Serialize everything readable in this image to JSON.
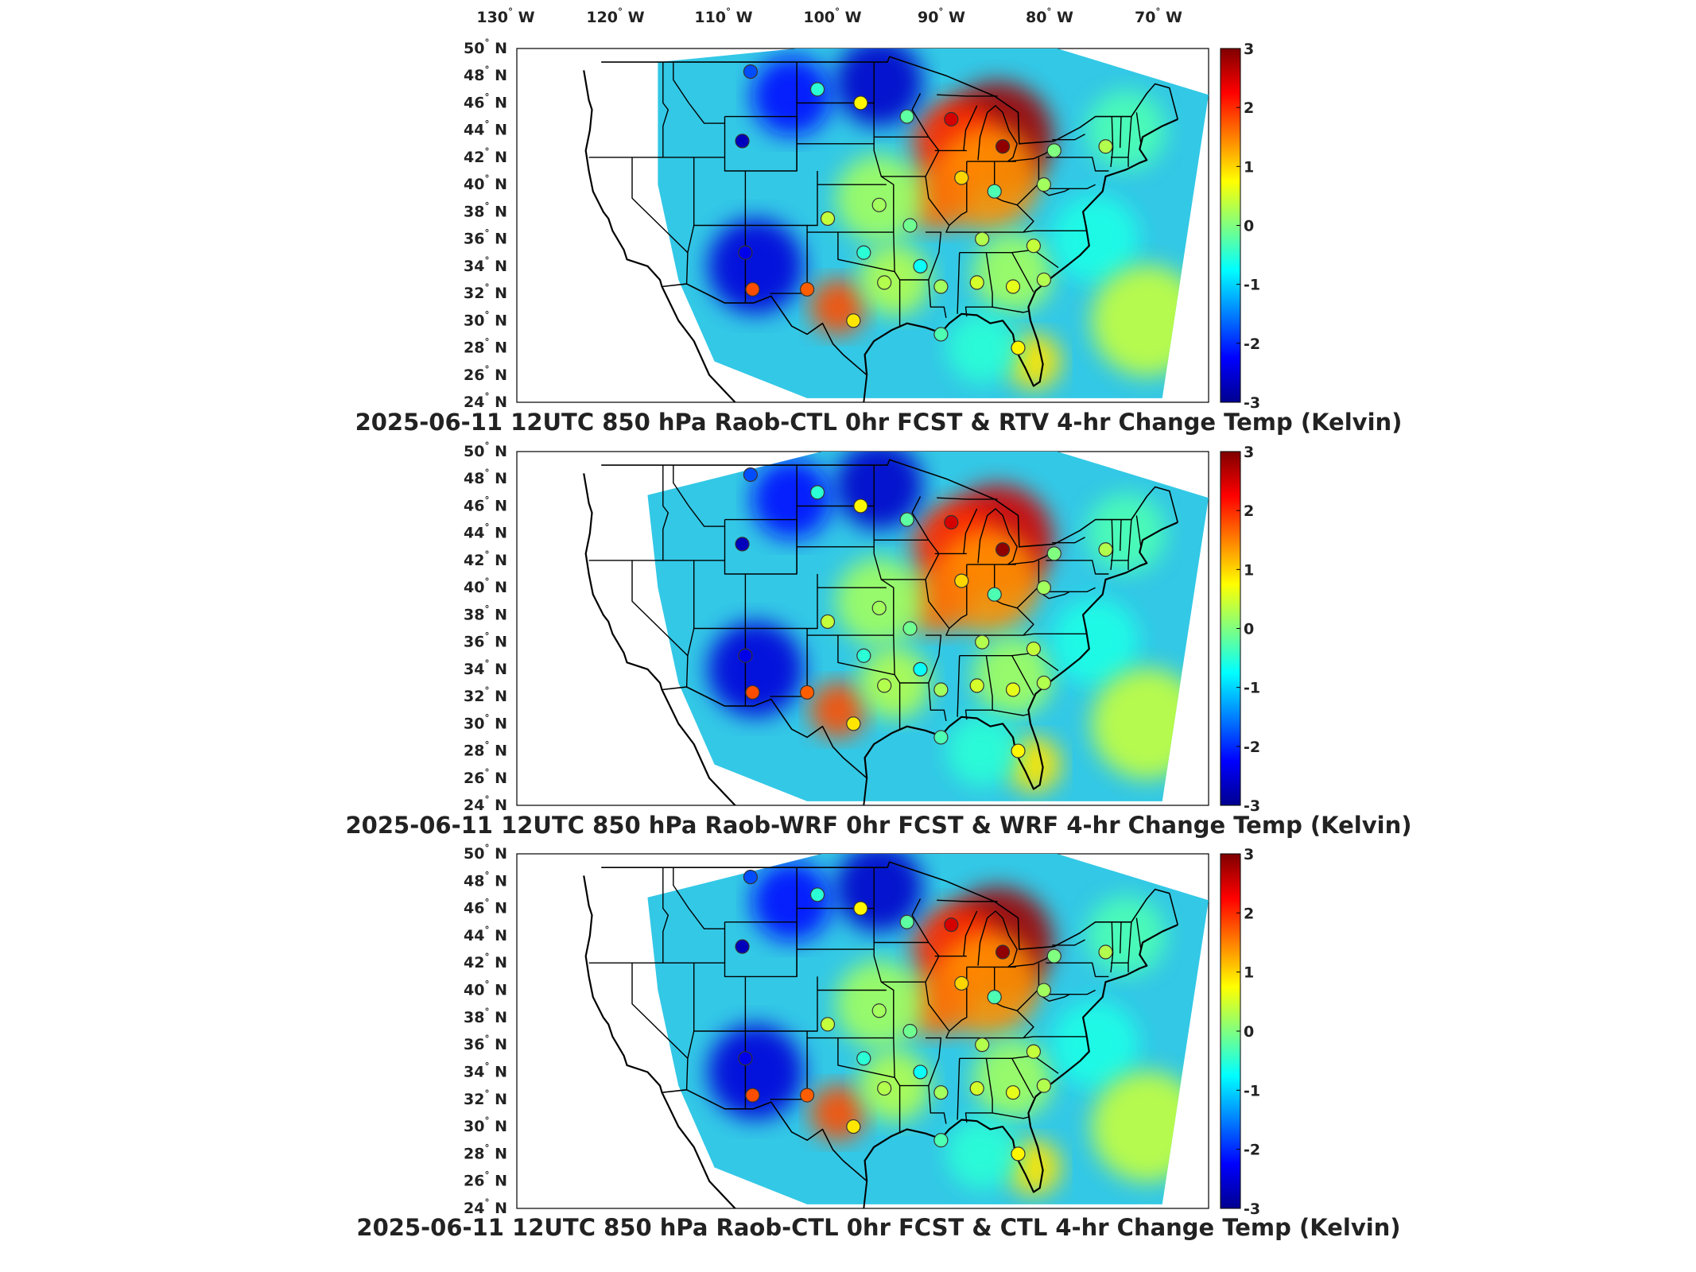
{
  "top_axis": {
    "lon_labels": [
      {
        "deg": "130",
        "hem": "W"
      },
      {
        "deg": "120",
        "hem": "W"
      },
      {
        "deg": "110",
        "hem": "W"
      },
      {
        "deg": "100",
        "hem": "W"
      },
      {
        "deg": "90",
        "hem": "W"
      },
      {
        "deg": "80",
        "hem": "W"
      },
      {
        "deg": "70",
        "hem": "W"
      }
    ]
  },
  "lat_labels": [
    {
      "deg": "50",
      "hem": "N"
    },
    {
      "deg": "48",
      "hem": "N"
    },
    {
      "deg": "46",
      "hem": "N"
    },
    {
      "deg": "44",
      "hem": "N"
    },
    {
      "deg": "42",
      "hem": "N"
    },
    {
      "deg": "40",
      "hem": "N"
    },
    {
      "deg": "38",
      "hem": "N"
    },
    {
      "deg": "36",
      "hem": "N"
    },
    {
      "deg": "34",
      "hem": "N"
    },
    {
      "deg": "32",
      "hem": "N"
    },
    {
      "deg": "30",
      "hem": "N"
    },
    {
      "deg": "28",
      "hem": "N"
    },
    {
      "deg": "26",
      "hem": "N"
    },
    {
      "deg": "24",
      "hem": "N"
    }
  ],
  "colorbar": {
    "ticks": [
      "3",
      "2",
      "1",
      "0",
      "-1",
      "-2",
      "-3"
    ],
    "colors": [
      "#7f0000",
      "#ff0000",
      "#ff8000",
      "#ffff00",
      "#80ff80",
      "#00ffff",
      "#0080ff",
      "#0000ff",
      "#00008f"
    ]
  },
  "panels": [
    {
      "title": "2025-06-11 12UTC 850 hPa Raob-CTL 0hr FCST & RTV 4-hr Change Temp (Kelvin)",
      "variant": "rtv"
    },
    {
      "title": "2025-06-11 12UTC 850 hPa Raob-WRF 0hr FCST & WRF 4-hr Change Temp (Kelvin)",
      "variant": "wrf"
    },
    {
      "title": "2025-06-11 12UTC 850 hPa Raob-CTL 0hr FCST & CTL 4-hr Change Temp (Kelvin)",
      "variant": "ctl"
    }
  ],
  "stations": [
    {
      "lat": 48.3,
      "lon": -108.5,
      "v": -1.8
    },
    {
      "lat": 47.0,
      "lon": -102.0,
      "v": -0.5
    },
    {
      "lat": 46.0,
      "lon": -97.8,
      "v": 0.8
    },
    {
      "lat": 45.0,
      "lon": -93.3,
      "v": -0.2
    },
    {
      "lat": 43.2,
      "lon": -109.3,
      "v": -2.7
    },
    {
      "lat": 44.8,
      "lon": -89.0,
      "v": 2.5
    },
    {
      "lat": 42.8,
      "lon": -84.0,
      "v": 2.9
    },
    {
      "lat": 42.5,
      "lon": -79.0,
      "v": 0.0
    },
    {
      "lat": 42.8,
      "lon": -74.0,
      "v": 0.3
    },
    {
      "lat": 40.5,
      "lon": -88.0,
      "v": 1.0
    },
    {
      "lat": 39.5,
      "lon": -84.8,
      "v": -0.3
    },
    {
      "lat": 40.0,
      "lon": -80.0,
      "v": 0.2
    },
    {
      "lat": 38.5,
      "lon": -96.0,
      "v": 0.2
    },
    {
      "lat": 37.5,
      "lon": -101.0,
      "v": 0.4
    },
    {
      "lat": 37.0,
      "lon": -93.0,
      "v": -0.1
    },
    {
      "lat": 36.0,
      "lon": -86.0,
      "v": 0.3
    },
    {
      "lat": 35.5,
      "lon": -81.0,
      "v": 0.4
    },
    {
      "lat": 35.0,
      "lon": -109.0,
      "v": -2.4
    },
    {
      "lat": 35.0,
      "lon": -97.5,
      "v": -0.5
    },
    {
      "lat": 34.0,
      "lon": -92.0,
      "v": -0.7
    },
    {
      "lat": 32.8,
      "lon": -95.5,
      "v": 0.3
    },
    {
      "lat": 32.3,
      "lon": -103.0,
      "v": 1.7
    },
    {
      "lat": 32.3,
      "lon": -108.3,
      "v": 1.8
    },
    {
      "lat": 32.5,
      "lon": -90.0,
      "v": 0.2
    },
    {
      "lat": 32.8,
      "lon": -86.5,
      "v": 0.5
    },
    {
      "lat": 32.5,
      "lon": -83.0,
      "v": 0.6
    },
    {
      "lat": 33.0,
      "lon": -80.0,
      "v": 0.3
    },
    {
      "lat": 30.0,
      "lon": -98.5,
      "v": 0.9
    },
    {
      "lat": 29.0,
      "lon": -90.0,
      "v": -0.3
    },
    {
      "lat": 28.0,
      "lon": -82.5,
      "v": 0.8
    }
  ]
}
